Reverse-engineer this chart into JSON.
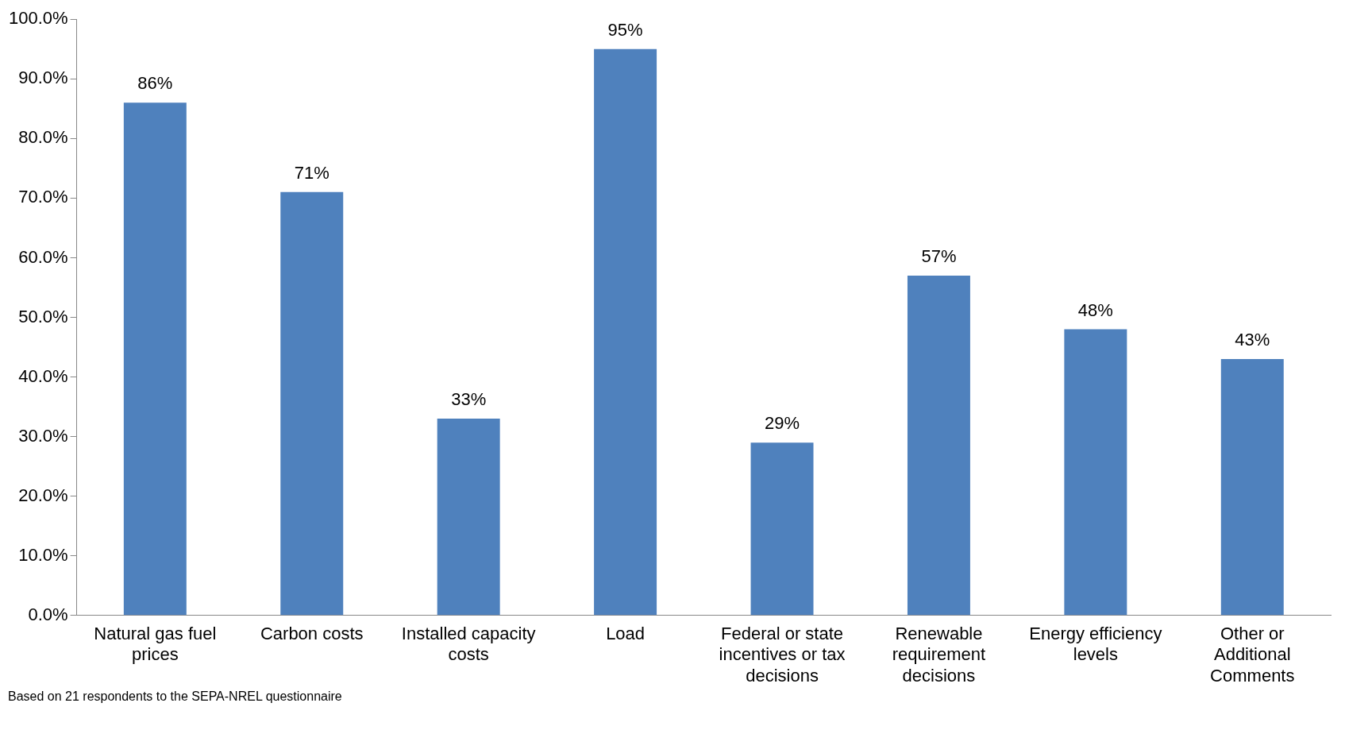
{
  "chart_data": {
    "type": "bar",
    "categories": [
      "Natural gas fuel prices",
      "Carbon costs",
      "Installed capacity costs",
      "Load",
      "Federal or state incentives or tax decisions",
      "Renewable requirement decisions",
      "Energy efficiency levels",
      "Other or Additional Comments"
    ],
    "values": [
      86,
      71,
      33,
      95,
      29,
      57,
      48,
      43
    ],
    "color": "#4f81bd",
    "value_labels": [
      "86%",
      "71%",
      "33%",
      "95%",
      "29%",
      "57%",
      "48%",
      "43%"
    ],
    "ylim": [
      0,
      100
    ],
    "yticks": [
      {
        "value": 0,
        "label": "0.0%"
      },
      {
        "value": 10,
        "label": "10.0%"
      },
      {
        "value": 20,
        "label": "20.0%"
      },
      {
        "value": 30,
        "label": "30.0%"
      },
      {
        "value": 40,
        "label": "40.0%"
      },
      {
        "value": 50,
        "label": "50.0%"
      },
      {
        "value": 60,
        "label": "60.0%"
      },
      {
        "value": 70,
        "label": "70.0%"
      },
      {
        "value": 80,
        "label": "80.0%"
      },
      {
        "value": 90,
        "label": "90.0%"
      },
      {
        "value": 100,
        "label": "100.0%"
      }
    ],
    "grid": false,
    "legend": false,
    "annotations": [
      "Based on 21 respondents to the SEPA-NREL questionnaire"
    ]
  }
}
